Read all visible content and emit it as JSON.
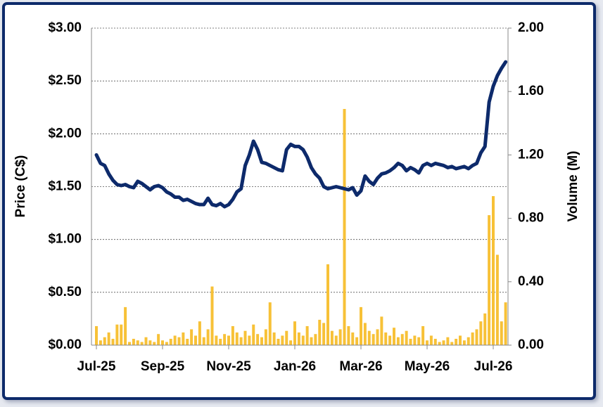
{
  "chart_data": {
    "type": "line",
    "ylabel": "Price (C$)",
    "y2label": "Volume (M)",
    "categories": [
      "Jul-25",
      null,
      null,
      null,
      null,
      null,
      null,
      null,
      null,
      null,
      null,
      null,
      null,
      null,
      null,
      null,
      "Sep-25",
      null,
      null,
      null,
      null,
      null,
      null,
      null,
      null,
      null,
      null,
      null,
      null,
      null,
      null,
      null,
      "Nov-25",
      null,
      null,
      null,
      null,
      null,
      null,
      null,
      null,
      null,
      null,
      null,
      null,
      null,
      null,
      null,
      "Jan-26",
      null,
      null,
      null,
      null,
      null,
      null,
      null,
      null,
      null,
      null,
      null,
      null,
      null,
      null,
      null,
      "Mar-26",
      null,
      null,
      null,
      null,
      null,
      null,
      null,
      null,
      null,
      null,
      null,
      null,
      null,
      null,
      null,
      "May-26",
      null,
      null,
      null,
      null,
      null,
      null,
      null,
      null,
      null,
      null,
      null,
      null,
      null,
      null,
      null,
      "Jul-26",
      null,
      null,
      null
    ],
    "series": [
      {
        "type": "bar",
        "axis": "y2",
        "color": "#f7c137",
        "values": [
          0.12,
          0.03,
          0.05,
          0.08,
          0.04,
          0.13,
          0.13,
          0.24,
          0.02,
          0.04,
          0.03,
          0.02,
          0.05,
          0.03,
          0.02,
          0.07,
          0.03,
          0.02,
          0.04,
          0.06,
          0.05,
          0.08,
          0.04,
          0.1,
          0.06,
          0.15,
          0.05,
          0.1,
          0.37,
          0.06,
          0.04,
          0.07,
          0.06,
          0.12,
          0.08,
          0.05,
          0.09,
          0.06,
          0.13,
          0.07,
          0.05,
          0.1,
          0.27,
          0.08,
          0.04,
          0.06,
          0.09,
          0.03,
          0.15,
          0.08,
          0.06,
          0.12,
          0.05,
          0.07,
          0.16,
          0.14,
          0.51,
          0.09,
          0.06,
          0.1,
          1.49,
          0.12,
          0.08,
          0.05,
          0.24,
          0.14,
          0.09,
          0.07,
          0.1,
          0.18,
          0.08,
          0.06,
          0.11,
          0.05,
          0.07,
          0.09,
          0.04,
          0.06,
          0.05,
          0.12,
          0.03,
          0.06,
          0.04,
          0.02,
          0.03,
          0.05,
          0.02,
          0.04,
          0.06,
          0.03,
          0.05,
          0.08,
          0.1,
          0.15,
          0.2,
          0.82,
          0.94,
          0.57,
          0.15,
          0.27
        ]
      },
      {
        "type": "line",
        "color": "#0d2a6b",
        "values": [
          1.8,
          1.72,
          1.7,
          1.62,
          1.56,
          1.52,
          1.51,
          1.52,
          1.5,
          1.49,
          1.55,
          1.53,
          1.5,
          1.47,
          1.5,
          1.51,
          1.49,
          1.45,
          1.43,
          1.4,
          1.4,
          1.37,
          1.38,
          1.36,
          1.34,
          1.33,
          1.33,
          1.39,
          1.33,
          1.32,
          1.34,
          1.31,
          1.33,
          1.38,
          1.45,
          1.48,
          1.7,
          1.8,
          1.93,
          1.85,
          1.73,
          1.72,
          1.7,
          1.68,
          1.66,
          1.65,
          1.85,
          1.9,
          1.88,
          1.88,
          1.85,
          1.78,
          1.68,
          1.62,
          1.58,
          1.5,
          1.48,
          1.49,
          1.5,
          1.49,
          1.48,
          1.47,
          1.49,
          1.42,
          1.46,
          1.6,
          1.55,
          1.52,
          1.58,
          1.62,
          1.63,
          1.65,
          1.68,
          1.72,
          1.7,
          1.65,
          1.68,
          1.66,
          1.63,
          1.7,
          1.72,
          1.7,
          1.72,
          1.71,
          1.7,
          1.68,
          1.69,
          1.67,
          1.68,
          1.69,
          1.67,
          1.7,
          1.72,
          1.82,
          1.88,
          2.3,
          2.45,
          2.55,
          2.62,
          2.68
        ]
      }
    ],
    "ylim": [
      0,
      3
    ],
    "yticks": [
      {
        "value": 0,
        "label": "$0.00"
      },
      {
        "value": 0.5,
        "label": "$0.50"
      },
      {
        "value": 1,
        "label": "$1.00"
      },
      {
        "value": 1.5,
        "label": "$1.50"
      },
      {
        "value": 2,
        "label": "$2.00"
      },
      {
        "value": 2.5,
        "label": "$2.50"
      },
      {
        "value": 3,
        "label": "$3.00"
      }
    ],
    "y2lim": [
      0,
      2
    ],
    "y2ticks": [
      {
        "value": 0,
        "label": "0.00"
      },
      {
        "value": 0.4,
        "label": "0.40"
      },
      {
        "value": 0.8,
        "label": "0.80"
      },
      {
        "value": 1.2,
        "label": "1.20"
      },
      {
        "value": 1.6,
        "label": "1.60"
      },
      {
        "value": 2,
        "label": "2.00"
      }
    ],
    "grid": true
  }
}
